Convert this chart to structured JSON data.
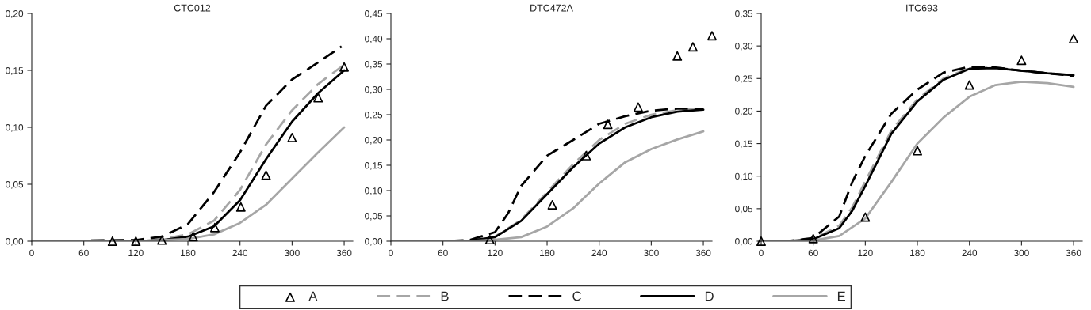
{
  "chart_data": [
    {
      "type": "line",
      "title": "CTC012",
      "xlim": [
        0,
        370
      ],
      "xticks": [
        0,
        60,
        120,
        180,
        240,
        300,
        360
      ],
      "ylim": [
        0,
        0.2
      ],
      "yticks": [
        {
          "value": 0,
          "label": "0,00"
        },
        {
          "value": 0.05,
          "label": "0,05"
        },
        {
          "value": 0.1,
          "label": "0,10"
        },
        {
          "value": 0.15,
          "label": "0,15"
        },
        {
          "value": 0.2,
          "label": "0,20"
        }
      ],
      "grid": false,
      "legend": "bottom",
      "series": [
        {
          "name": "A",
          "type": "scatter",
          "marker": "triangle",
          "color": "#000000",
          "x": [
            93,
            120,
            150,
            186,
            211,
            241,
            270,
            300,
            330,
            360
          ],
          "values": [
            0,
            0,
            0.001,
            0.004,
            0.012,
            0.03,
            0.058,
            0.091,
            0.126,
            0.153
          ]
        },
        {
          "name": "B",
          "line_style": "dashed",
          "color": "#a6a6a6",
          "x": [
            0,
            120,
            150,
            180,
            210,
            240,
            270,
            300,
            330,
            360
          ],
          "values": [
            0,
            0.001,
            0.002,
            0.006,
            0.018,
            0.045,
            0.085,
            0.115,
            0.138,
            0.155
          ]
        },
        {
          "name": "C",
          "line_style": "dashed",
          "color": "#000000",
          "x": [
            0,
            120,
            150,
            180,
            210,
            240,
            270,
            300,
            330,
            357
          ],
          "values": [
            0,
            0.001,
            0.004,
            0.015,
            0.043,
            0.078,
            0.119,
            0.142,
            0.157,
            0.171
          ]
        },
        {
          "name": "D",
          "line_style": "solid",
          "color": "#000000",
          "x": [
            0,
            120,
            150,
            180,
            210,
            240,
            270,
            300,
            330,
            360
          ],
          "values": [
            0,
            0,
            0.001,
            0.004,
            0.013,
            0.036,
            0.072,
            0.105,
            0.13,
            0.15
          ]
        },
        {
          "name": "E",
          "line_style": "solid",
          "color": "#a6a6a6",
          "x": [
            0,
            120,
            150,
            180,
            210,
            240,
            270,
            300,
            330,
            360
          ],
          "values": [
            0,
            0,
            0.001,
            0.002,
            0.006,
            0.016,
            0.032,
            0.055,
            0.078,
            0.1
          ]
        }
      ]
    },
    {
      "type": "line",
      "title": "DTC472A",
      "xlim": [
        0,
        370
      ],
      "xticks": [
        0,
        60,
        120,
        180,
        240,
        300,
        360
      ],
      "ylim": [
        0,
        0.45
      ],
      "yticks": [
        {
          "value": 0,
          "label": "0,00"
        },
        {
          "value": 0.05,
          "label": "0,05"
        },
        {
          "value": 0.1,
          "label": "0,10"
        },
        {
          "value": 0.15,
          "label": "0,15"
        },
        {
          "value": 0.2,
          "label": "0,20"
        },
        {
          "value": 0.25,
          "label": "0,25"
        },
        {
          "value": 0.3,
          "label": "0,30"
        },
        {
          "value": 0.35,
          "label": "0,35"
        },
        {
          "value": 0.4,
          "label": "0,40"
        },
        {
          "value": 0.45,
          "label": "0,45"
        }
      ],
      "grid": false,
      "series": [
        {
          "type": "scatter",
          "marker": "triangle",
          "color": "#000000",
          "x": [
            114,
            186,
            225,
            250,
            285,
            330,
            348,
            370
          ],
          "values": [
            0.003,
            0.072,
            0.169,
            0.231,
            0.265,
            0.366,
            0.384,
            0.406
          ]
        },
        {
          "line_style": "dashed",
          "color": "#a6a6a6",
          "x": [
            0,
            60,
            90,
            120,
            150,
            180,
            210,
            240,
            270,
            300,
            330,
            360
          ],
          "values": [
            0,
            0,
            0.001,
            0.009,
            0.042,
            0.097,
            0.152,
            0.2,
            0.232,
            0.25,
            0.259,
            0.262
          ]
        },
        {
          "line_style": "dashed",
          "color": "#000000",
          "x": [
            0,
            60,
            90,
            120,
            135,
            150,
            180,
            210,
            240,
            270,
            300,
            330,
            360
          ],
          "values": [
            0,
            0,
            0.002,
            0.018,
            0.055,
            0.109,
            0.169,
            0.2,
            0.232,
            0.247,
            0.258,
            0.262,
            0.262
          ]
        },
        {
          "line_style": "solid",
          "color": "#000000",
          "x": [
            0,
            60,
            90,
            120,
            150,
            180,
            210,
            240,
            270,
            300,
            330,
            360
          ],
          "values": [
            0,
            0,
            0.001,
            0.008,
            0.04,
            0.093,
            0.146,
            0.193,
            0.225,
            0.245,
            0.256,
            0.26
          ]
        },
        {
          "line_style": "solid",
          "color": "#a6a6a6",
          "x": [
            0,
            90,
            120,
            150,
            180,
            210,
            240,
            270,
            300,
            330,
            360
          ],
          "values": [
            0,
            0,
            0.003,
            0.008,
            0.029,
            0.065,
            0.114,
            0.156,
            0.182,
            0.201,
            0.217
          ]
        }
      ]
    },
    {
      "type": "line",
      "title": "ITC693",
      "xlim": [
        0,
        370
      ],
      "xticks": [
        0,
        60,
        120,
        180,
        240,
        300,
        360
      ],
      "ylim": [
        0,
        0.35
      ],
      "yticks": [
        {
          "value": 0,
          "label": "0,00"
        },
        {
          "value": 0.05,
          "label": "0,05"
        },
        {
          "value": 0.1,
          "label": "0,10"
        },
        {
          "value": 0.15,
          "label": "0,15"
        },
        {
          "value": 0.2,
          "label": "0,20"
        },
        {
          "value": 0.25,
          "label": "0,25"
        },
        {
          "value": 0.3,
          "label": "0,30"
        },
        {
          "value": 0.35,
          "label": "0,35"
        }
      ],
      "grid": false,
      "series": [
        {
          "type": "scatter",
          "marker": "triangle",
          "color": "#000000",
          "x": [
            0,
            60,
            120,
            180,
            240,
            300,
            360
          ],
          "values": [
            0,
            0.004,
            0.037,
            0.139,
            0.24,
            0.278,
            0.311
          ]
        },
        {
          "line_style": "dashed",
          "color": "#a6a6a6",
          "x": [
            0,
            30,
            60,
            90,
            105,
            120,
            150,
            180,
            210,
            240,
            270,
            300,
            330,
            360
          ],
          "values": [
            0,
            0,
            0.003,
            0.024,
            0.052,
            0.092,
            0.17,
            0.218,
            0.25,
            0.266,
            0.267,
            0.262,
            0.258,
            0.255
          ]
        },
        {
          "line_style": "dashed",
          "color": "#000000",
          "x": [
            0,
            30,
            60,
            90,
            105,
            120,
            150,
            180,
            210,
            240,
            270,
            300,
            330,
            360
          ],
          "values": [
            0,
            0,
            0.005,
            0.038,
            0.091,
            0.131,
            0.196,
            0.233,
            0.259,
            0.268,
            0.267,
            0.262,
            0.258,
            0.254
          ]
        },
        {
          "line_style": "solid",
          "color": "#000000",
          "x": [
            0,
            30,
            60,
            90,
            105,
            120,
            150,
            180,
            210,
            240,
            270,
            300,
            330,
            360
          ],
          "values": [
            0,
            0,
            0.003,
            0.02,
            0.047,
            0.085,
            0.165,
            0.215,
            0.248,
            0.265,
            0.266,
            0.262,
            0.258,
            0.255
          ]
        },
        {
          "line_style": "solid",
          "color": "#a6a6a6",
          "x": [
            0,
            30,
            60,
            90,
            120,
            150,
            180,
            210,
            240,
            270,
            300,
            330,
            360
          ],
          "values": [
            0,
            0,
            0.001,
            0.008,
            0.035,
            0.091,
            0.15,
            0.19,
            0.222,
            0.24,
            0.245,
            0.243,
            0.237
          ]
        }
      ]
    }
  ]
}
